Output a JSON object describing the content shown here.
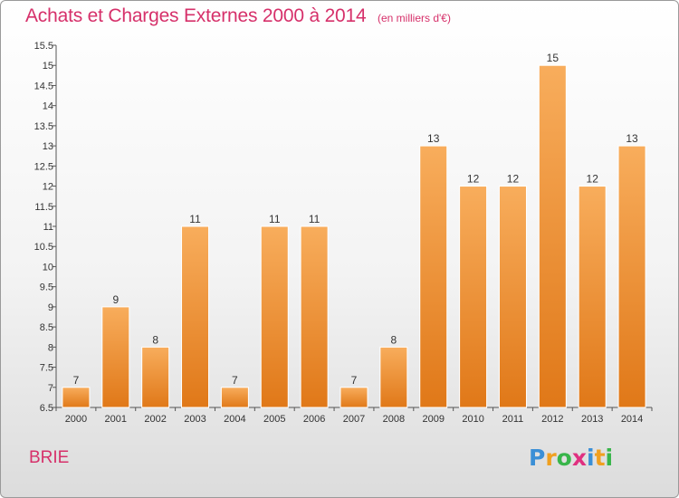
{
  "header": {
    "title": "Achats et Charges Externes 2000 à 2014",
    "subtitle": "(en milliers d'€)"
  },
  "footer": {
    "commune": "BRIE",
    "logo_text": "Proxiti"
  },
  "colors": {
    "accent": "#d6306a",
    "bar_light": "#f8ad5c",
    "bar_dark": "#e07818"
  },
  "chart_data": {
    "type": "bar",
    "categories": [
      "2000",
      "2001",
      "2002",
      "2003",
      "2004",
      "2005",
      "2006",
      "2007",
      "2008",
      "2009",
      "2010",
      "2011",
      "2012",
      "2013",
      "2014"
    ],
    "values": [
      7,
      9,
      8,
      11,
      7,
      11,
      11,
      7,
      8,
      13,
      12,
      12,
      15,
      12,
      13
    ],
    "ylim": [
      6.5,
      15.5
    ],
    "yticks": [
      "6.5",
      "7",
      "7.5",
      "8",
      "8.5",
      "9",
      "9.5",
      "10",
      "10.5",
      "11",
      "11.5",
      "12",
      "12.5",
      "13",
      "13.5",
      "14",
      "14.5",
      "15",
      "15.5"
    ],
    "grid": false,
    "legend": "none"
  }
}
